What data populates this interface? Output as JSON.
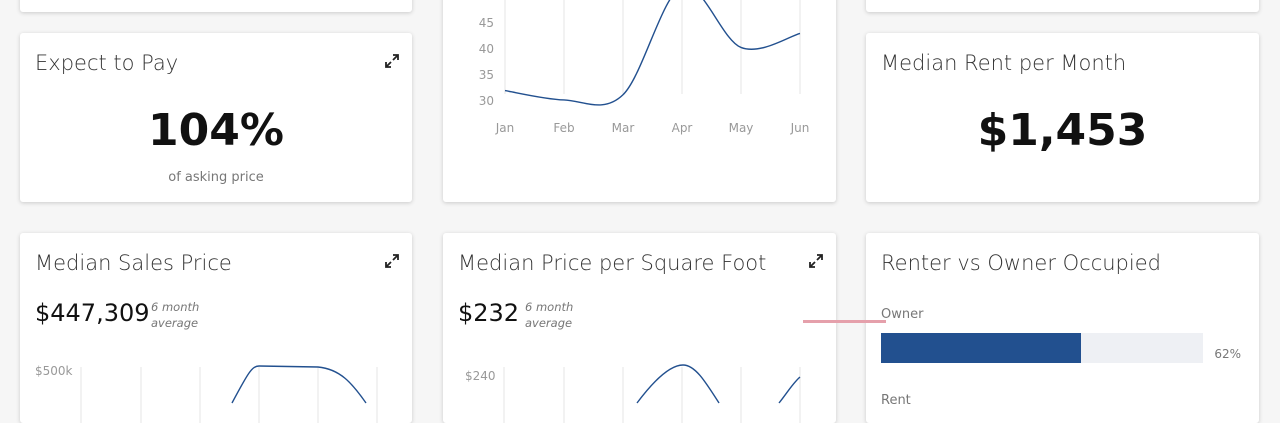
{
  "cards": {
    "expect_to_pay": {
      "title": "Expect to Pay",
      "value": "104%",
      "caption": "of asking price"
    },
    "median_rent": {
      "title": "Median Rent per Month",
      "value": "$1,453"
    },
    "median_sales_price": {
      "title": "Median Sales Price",
      "value": "$447,309",
      "avg_line1": "6 month",
      "avg_line2": "average",
      "y_tick_top": "$500k"
    },
    "median_price_sqft": {
      "title": "Median Price per Square Foot",
      "value": "$232",
      "avg_line1": "6 month",
      "avg_line2": "average",
      "y_tick_top": "$240"
    },
    "renter_vs_owner": {
      "title": "Renter vs Owner Occupied",
      "owner_label": "Owner",
      "owner_pct": "62%",
      "owner_fraction": 0.62,
      "renter_label": "Rent"
    }
  },
  "icons": {
    "expand": "expand-arrows-icon"
  },
  "colors": {
    "accent": "#22508f",
    "track": "#eef0f4",
    "highlight": "#e5a0ab"
  },
  "chart_data": {
    "type": "line",
    "categories": [
      "Jan",
      "Feb",
      "Mar",
      "Apr",
      "May",
      "Jun"
    ],
    "y_ticks": [
      "30",
      "35",
      "40",
      "45"
    ],
    "ylim": [
      28,
      48
    ],
    "series": [
      {
        "values": [
          32,
          30.2,
          31.2,
          52,
          40.3,
          43
        ]
      }
    ]
  }
}
